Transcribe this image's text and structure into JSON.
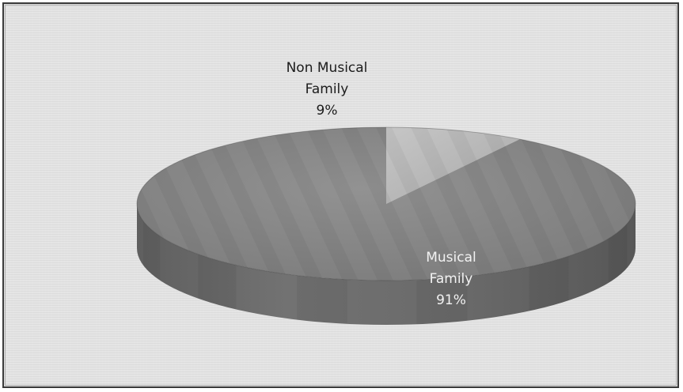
{
  "chart_data": {
    "type": "pie",
    "title": "",
    "style": "3d",
    "slices": [
      {
        "label_lines": [
          "Non Musical",
          "Family"
        ],
        "value": 9,
        "percent_label": "9%",
        "color": "#b9b9b9"
      },
      {
        "label_lines": [
          "Musical",
          "Family"
        ],
        "value": 91,
        "percent_label": "91%",
        "color": "#858585"
      }
    ],
    "legend": "none"
  }
}
